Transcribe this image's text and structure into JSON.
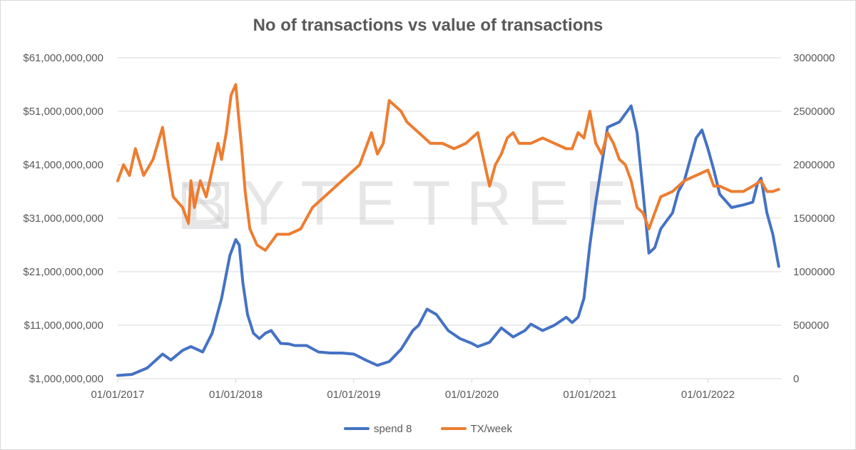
{
  "chart_data": {
    "type": "line",
    "title": "No of transactions vs value of transactions",
    "watermark": "BYTETREE",
    "x_ticks": [
      "01/01/2017",
      "01/01/2018",
      "01/01/2019",
      "01/01/2020",
      "01/01/2021",
      "01/01/2022"
    ],
    "y_left_ticks": [
      "$1,000,000,000",
      "$11,000,000,000",
      "$21,000,000,000",
      "$31,000,000,000",
      "$41,000,000,000",
      "$51,000,000,000",
      "$61,000,000,000"
    ],
    "y_right_ticks": [
      "0",
      "500000",
      "1000000",
      "1500000",
      "2000000",
      "2500000",
      "3000000"
    ],
    "ylim_left": [
      1000000000,
      61000000000
    ],
    "ylim_right": [
      0,
      3000000
    ],
    "xlim": [
      2017.0,
      2022.62
    ],
    "grid": true,
    "legend_position": "bottom",
    "series": [
      {
        "name": "spend 8",
        "axis": "left",
        "color": "#4472C4",
        "x": [
          2017.0,
          2017.12,
          2017.25,
          2017.38,
          2017.45,
          2017.55,
          2017.62,
          2017.72,
          2017.8,
          2017.88,
          2017.95,
          2018.0,
          2018.03,
          2018.06,
          2018.1,
          2018.15,
          2018.2,
          2018.25,
          2018.3,
          2018.38,
          2018.45,
          2018.5,
          2018.6,
          2018.7,
          2018.8,
          2018.9,
          2019.0,
          2019.1,
          2019.2,
          2019.3,
          2019.4,
          2019.5,
          2019.55,
          2019.62,
          2019.7,
          2019.8,
          2019.9,
          2020.0,
          2020.05,
          2020.15,
          2020.25,
          2020.35,
          2020.45,
          2020.5,
          2020.6,
          2020.7,
          2020.8,
          2020.85,
          2020.9,
          2020.95,
          2021.0,
          2021.05,
          2021.1,
          2021.15,
          2021.25,
          2021.35,
          2021.4,
          2021.45,
          2021.5,
          2021.55,
          2021.6,
          2021.7,
          2021.75,
          2021.8,
          2021.85,
          2021.9,
          2021.95,
          2022.0,
          2022.05,
          2022.1,
          2022.2,
          2022.3,
          2022.38,
          2022.42,
          2022.45,
          2022.5,
          2022.55,
          2022.6
        ],
        "values": [
          1600000000,
          1800000000,
          3000000000,
          5600000000,
          4500000000,
          6300000000,
          7000000000,
          6000000000,
          9500000000,
          16000000000,
          24000000000,
          27000000000,
          26000000000,
          19000000000,
          13000000000,
          9500000000,
          8500000000,
          9500000000,
          10000000000,
          7600000000,
          7500000000,
          7200000000,
          7200000000,
          6000000000,
          5800000000,
          5800000000,
          5600000000,
          4500000000,
          3500000000,
          4200000000,
          6500000000,
          10000000000,
          11000000000,
          14000000000,
          13000000000,
          10000000000,
          8500000000,
          7600000000,
          7000000000,
          7800000000,
          10500000000,
          8800000000,
          10000000000,
          11200000000,
          10000000000,
          11000000000,
          12500000000,
          11500000000,
          12500000000,
          16000000000,
          26000000000,
          34000000000,
          41000000000,
          48000000000,
          49000000000,
          52000000000,
          47000000000,
          36000000000,
          24500000000,
          25500000000,
          29000000000,
          32000000000,
          36000000000,
          38000000000,
          42000000000,
          46000000000,
          47500000000,
          44000000000,
          40000000000,
          35500000000,
          33000000000,
          33500000000,
          34000000000,
          37500000000,
          38500000000,
          32000000000,
          28000000000,
          22000000000
        ]
      },
      {
        "name": "TX/week",
        "axis": "right",
        "color": "#ED7D31",
        "x": [
          2017.0,
          2017.05,
          2017.1,
          2017.15,
          2017.22,
          2017.3,
          2017.38,
          2017.42,
          2017.47,
          2017.55,
          2017.6,
          2017.62,
          2017.65,
          2017.7,
          2017.75,
          2017.8,
          2017.85,
          2017.88,
          2017.92,
          2017.96,
          2018.0,
          2018.02,
          2018.05,
          2018.08,
          2018.12,
          2018.18,
          2018.25,
          2018.35,
          2018.45,
          2018.55,
          2018.65,
          2018.75,
          2018.85,
          2018.95,
          2019.05,
          2019.15,
          2019.2,
          2019.25,
          2019.3,
          2019.35,
          2019.4,
          2019.45,
          2019.55,
          2019.65,
          2019.75,
          2019.85,
          2019.95,
          2020.05,
          2020.15,
          2020.2,
          2020.25,
          2020.3,
          2020.35,
          2020.4,
          2020.5,
          2020.6,
          2020.7,
          2020.8,
          2020.85,
          2020.9,
          2020.95,
          2021.0,
          2021.05,
          2021.1,
          2021.15,
          2021.2,
          2021.25,
          2021.3,
          2021.35,
          2021.4,
          2021.45,
          2021.5,
          2021.55,
          2021.6,
          2021.7,
          2021.8,
          2021.9,
          2022.0,
          2022.05,
          2022.1,
          2022.2,
          2022.3,
          2022.38,
          2022.45,
          2022.5,
          2022.55,
          2022.6
        ],
        "values": [
          1850000,
          2000000,
          1900000,
          2150000,
          1900000,
          2050000,
          2350000,
          2050000,
          1700000,
          1600000,
          1450000,
          1850000,
          1600000,
          1850000,
          1700000,
          1950000,
          2200000,
          2050000,
          2300000,
          2650000,
          2750000,
          2500000,
          2150000,
          1750000,
          1400000,
          1250000,
          1200000,
          1350000,
          1350000,
          1400000,
          1600000,
          1700000,
          1800000,
          1900000,
          2000000,
          2300000,
          2100000,
          2200000,
          2600000,
          2550000,
          2500000,
          2400000,
          2300000,
          2200000,
          2200000,
          2150000,
          2200000,
          2300000,
          1800000,
          2000000,
          2100000,
          2250000,
          2300000,
          2200000,
          2200000,
          2250000,
          2200000,
          2150000,
          2150000,
          2300000,
          2250000,
          2500000,
          2200000,
          2100000,
          2300000,
          2200000,
          2050000,
          2000000,
          1850000,
          1600000,
          1550000,
          1400000,
          1550000,
          1700000,
          1750000,
          1850000,
          1900000,
          1950000,
          1800000,
          1800000,
          1750000,
          1750000,
          1800000,
          1850000,
          1750000,
          1750000,
          1770000
        ]
      }
    ]
  }
}
